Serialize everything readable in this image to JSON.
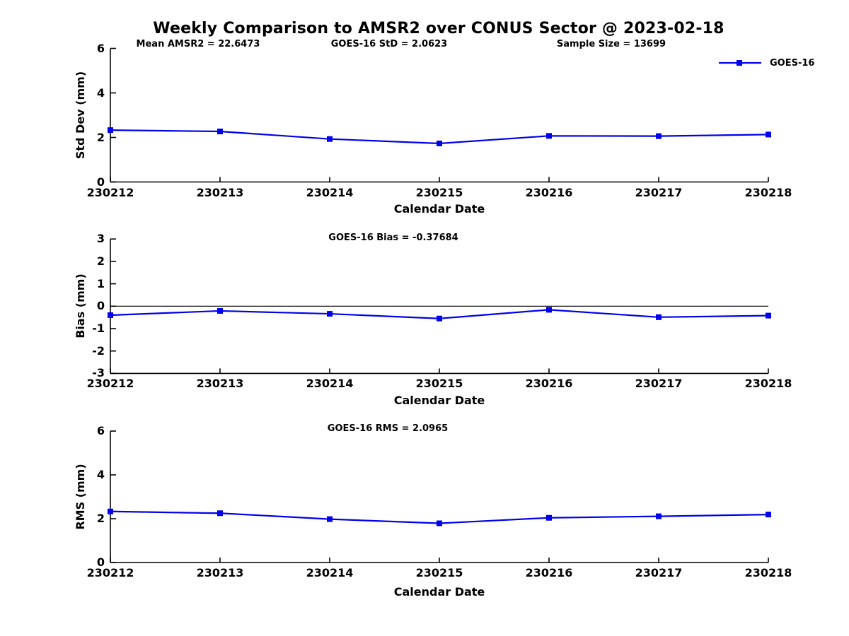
{
  "title": "Weekly Comparison to AMSR2 over CONUS Sector @ 2023-02-18",
  "header_stats": {
    "mean_amsr2": "Mean AMSR2 = 22.6473",
    "goes16_std": "GOES-16 StD = 2.0623",
    "sample_size": "Sample Size = 13699"
  },
  "legend": {
    "label": "GOES-16",
    "marker": "filled-square",
    "position": "top-right"
  },
  "colors": {
    "line": "#0000ee",
    "axis": "#000000",
    "text": "#000000",
    "background": "#ffffff"
  },
  "chart_data": [
    {
      "type": "line",
      "id": "std-dev",
      "title": "",
      "categories": [
        "230212",
        "230213",
        "230214",
        "230215",
        "230216",
        "230217",
        "230218"
      ],
      "series": [
        {
          "name": "GOES-16",
          "values": [
            2.33,
            2.27,
            1.93,
            1.73,
            2.07,
            2.06,
            2.13
          ]
        }
      ],
      "xlabel": "Calendar Date",
      "ylabel": "Std Dev (mm)",
      "ylim": [
        0,
        6
      ],
      "yticks": [
        0,
        2,
        4,
        6
      ],
      "grid": false,
      "zero_line": false
    },
    {
      "type": "line",
      "id": "bias",
      "title": "GOES-16 Bias  = -0.37684",
      "categories": [
        "230212",
        "230213",
        "230214",
        "230215",
        "230216",
        "230217",
        "230218"
      ],
      "series": [
        {
          "name": "GOES-16",
          "values": [
            -0.4,
            -0.21,
            -0.34,
            -0.55,
            -0.16,
            -0.49,
            -0.42
          ]
        }
      ],
      "xlabel": "Calendar Date",
      "ylabel": "Bias (mm)",
      "ylim": [
        -3,
        3
      ],
      "yticks": [
        -3,
        -2,
        -1,
        0,
        1,
        2,
        3
      ],
      "grid": false,
      "zero_line": true
    },
    {
      "type": "line",
      "id": "rms",
      "title": "GOES-16 RMS = 2.0965",
      "categories": [
        "230212",
        "230213",
        "230214",
        "230215",
        "230216",
        "230217",
        "230218"
      ],
      "series": [
        {
          "name": "GOES-16",
          "values": [
            2.33,
            2.25,
            1.98,
            1.79,
            2.04,
            2.11,
            2.19
          ]
        }
      ],
      "xlabel": "Calendar Date",
      "ylabel": "RMS (mm)",
      "ylim": [
        0,
        6
      ],
      "yticks": [
        0,
        2,
        4,
        6
      ],
      "grid": false,
      "zero_line": false
    }
  ]
}
